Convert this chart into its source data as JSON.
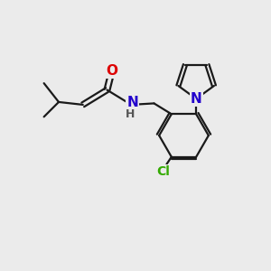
{
  "background_color": "#ebebeb",
  "bond_color": "#1a1a1a",
  "bond_width": 1.6,
  "atom_colors": {
    "O": "#dd0000",
    "N_amide": "#2200cc",
    "N_pyrrole": "#2200cc",
    "Cl": "#33aa00",
    "H": "#555555"
  },
  "font_size_atom": 11,
  "font_size_small": 9,
  "font_size_cl": 10
}
